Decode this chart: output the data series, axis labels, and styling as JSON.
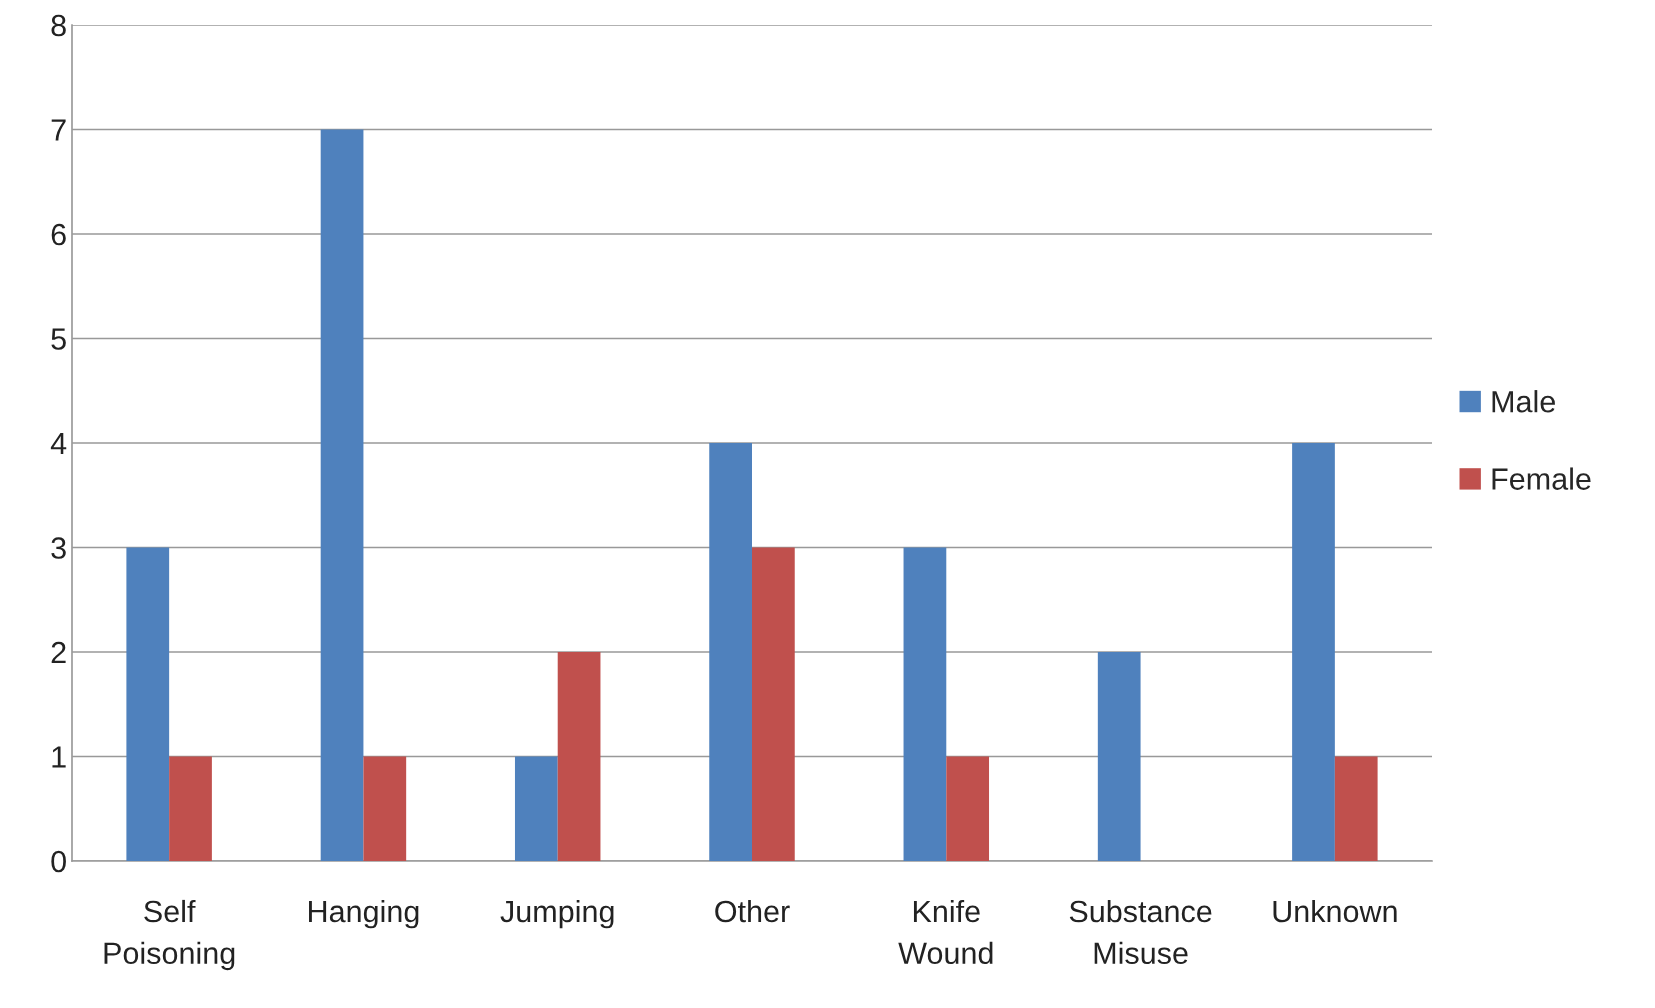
{
  "chart_data": {
    "type": "bar",
    "categories": [
      "Self\nPoisoning",
      "Hanging",
      "Jumping",
      "Other",
      "Knife\nWound",
      "Substance\nMisuse",
      "Unknown"
    ],
    "series": [
      {
        "name": "Male",
        "color": "#4f81bd",
        "values": [
          3,
          7,
          1,
          4,
          3,
          2,
          4
        ]
      },
      {
        "name": "Female",
        "color": "#c0504d",
        "values": [
          1,
          1,
          2,
          3,
          1,
          null,
          1
        ]
      }
    ],
    "ylim": [
      0,
      8
    ],
    "yticks": [
      0,
      1,
      2,
      3,
      4,
      5,
      6,
      7,
      8
    ],
    "grid": "y",
    "legend": "right"
  }
}
